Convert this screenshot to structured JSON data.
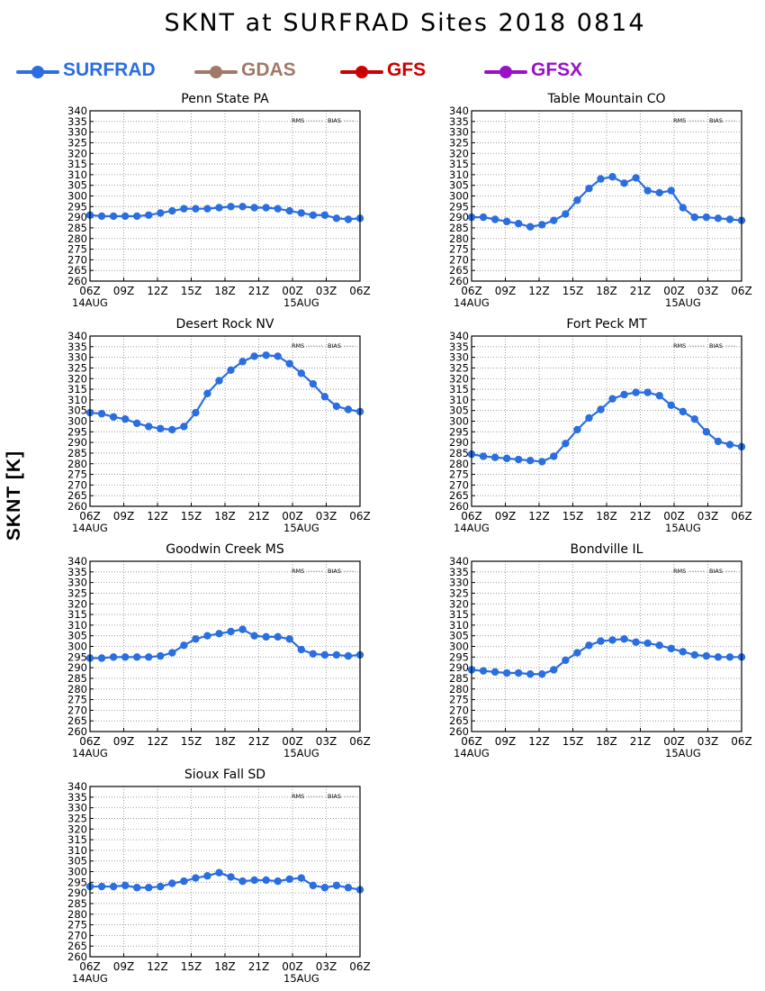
{
  "header": {
    "title": "SKNT at SURFRAD Sites    2018 0814"
  },
  "legend": [
    {
      "label": "SURFRAD",
      "color": "#2a6ee0"
    },
    {
      "label": "GDAS",
      "color": "#a0796a"
    },
    {
      "label": "GFS",
      "color": "#cc0000"
    },
    {
      "label": "GFSX",
      "color": "#9a10c8"
    }
  ],
  "ylabel": "SKNT [K]",
  "panel_legend": {
    "rms": "RMS",
    "bias": "BIAS"
  },
  "chart_data": [
    {
      "type": "line",
      "title": "Penn State PA",
      "x_ticks": [
        "06Z",
        "09Z",
        "12Z",
        "15Z",
        "18Z",
        "21Z",
        "00Z",
        "03Z",
        "06Z"
      ],
      "date_labels": [
        "14AUG",
        "15AUG"
      ],
      "ylim": [
        260,
        340
      ],
      "y_ticks": [
        260,
        265,
        270,
        275,
        280,
        285,
        290,
        295,
        300,
        305,
        310,
        315,
        320,
        325,
        330,
        335,
        340
      ],
      "grid": true,
      "series": [
        {
          "name": "SURFRAD",
          "values": [
            291,
            290.5,
            290.5,
            290.5,
            290.5,
            291,
            292,
            293,
            294,
            294,
            294,
            294.5,
            295,
            295,
            294.5,
            294.5,
            294,
            293,
            292,
            291,
            291,
            289.5,
            289,
            289.5
          ]
        }
      ]
    },
    {
      "type": "line",
      "title": "Table Mountain CO",
      "x_ticks": [
        "06Z",
        "09Z",
        "12Z",
        "15Z",
        "18Z",
        "21Z",
        "00Z",
        "03Z",
        "06Z"
      ],
      "date_labels": [
        "14AUG",
        "15AUG"
      ],
      "ylim": [
        260,
        340
      ],
      "y_ticks": [
        260,
        265,
        270,
        275,
        280,
        285,
        290,
        295,
        300,
        305,
        310,
        315,
        320,
        325,
        330,
        335,
        340
      ],
      "grid": true,
      "series": [
        {
          "name": "SURFRAD",
          "values": [
            290,
            290,
            289,
            288,
            287,
            285.5,
            286.5,
            288.5,
            291.5,
            298,
            303.5,
            308,
            309,
            306,
            308.5,
            302.5,
            301.5,
            302.5,
            294.5,
            290,
            290,
            289.5,
            289,
            288.5
          ]
        }
      ]
    },
    {
      "type": "line",
      "title": "Desert Rock NV",
      "x_ticks": [
        "06Z",
        "09Z",
        "12Z",
        "15Z",
        "18Z",
        "21Z",
        "00Z",
        "03Z",
        "06Z"
      ],
      "date_labels": [
        "14AUG",
        "15AUG"
      ],
      "ylim": [
        260,
        340
      ],
      "y_ticks": [
        260,
        265,
        270,
        275,
        280,
        285,
        290,
        295,
        300,
        305,
        310,
        315,
        320,
        325,
        330,
        335,
        340
      ],
      "grid": true,
      "series": [
        {
          "name": "SURFRAD",
          "values": [
            304,
            303.5,
            302,
            301,
            299,
            297.5,
            296.5,
            296,
            297.5,
            304,
            313,
            319,
            324,
            328,
            330.5,
            331,
            330.5,
            327,
            322.5,
            317.5,
            311.5,
            307,
            305.5,
            304.5
          ]
        }
      ]
    },
    {
      "type": "line",
      "title": "Fort Peck MT",
      "x_ticks": [
        "06Z",
        "09Z",
        "12Z",
        "15Z",
        "18Z",
        "21Z",
        "00Z",
        "03Z",
        "06Z"
      ],
      "date_labels": [
        "14AUG",
        "15AUG"
      ],
      "ylim": [
        260,
        340
      ],
      "y_ticks": [
        260,
        265,
        270,
        275,
        280,
        285,
        290,
        295,
        300,
        305,
        310,
        315,
        320,
        325,
        330,
        335,
        340
      ],
      "grid": true,
      "series": [
        {
          "name": "SURFRAD",
          "values": [
            284.5,
            283.5,
            283,
            282.5,
            282,
            281.5,
            281,
            283.5,
            289.5,
            296,
            301.5,
            305.5,
            310.5,
            312.5,
            313.5,
            313.5,
            312,
            307.5,
            304.5,
            301,
            295,
            290.5,
            289,
            288
          ]
        }
      ]
    },
    {
      "type": "line",
      "title": "Goodwin Creek MS",
      "x_ticks": [
        "06Z",
        "09Z",
        "12Z",
        "15Z",
        "18Z",
        "21Z",
        "00Z",
        "03Z",
        "06Z"
      ],
      "date_labels": [
        "14AUG",
        "15AUG"
      ],
      "ylim": [
        260,
        340
      ],
      "y_ticks": [
        260,
        265,
        270,
        275,
        280,
        285,
        290,
        295,
        300,
        305,
        310,
        315,
        320,
        325,
        330,
        335,
        340
      ],
      "grid": true,
      "series": [
        {
          "name": "SURFRAD",
          "values": [
            294.5,
            294.5,
            295,
            295,
            295,
            295,
            295.5,
            297,
            300.5,
            303.5,
            305,
            306,
            307,
            308,
            305,
            304.5,
            304.5,
            303.5,
            298.5,
            296.5,
            296,
            296,
            295.5,
            296
          ]
        }
      ]
    },
    {
      "type": "line",
      "title": "Bondville IL",
      "x_ticks": [
        "06Z",
        "09Z",
        "12Z",
        "15Z",
        "18Z",
        "21Z",
        "00Z",
        "03Z",
        "06Z"
      ],
      "date_labels": [
        "14AUG",
        "15AUG"
      ],
      "ylim": [
        260,
        340
      ],
      "y_ticks": [
        260,
        265,
        270,
        275,
        280,
        285,
        290,
        295,
        300,
        305,
        310,
        315,
        320,
        325,
        330,
        335,
        340
      ],
      "grid": true,
      "series": [
        {
          "name": "SURFRAD",
          "values": [
            289,
            288.5,
            288,
            287.5,
            287.5,
            287,
            287,
            289,
            293.5,
            297,
            300.5,
            302.5,
            303,
            303.5,
            302,
            301.5,
            300.5,
            299,
            297.5,
            296,
            295.5,
            295,
            295,
            295
          ]
        }
      ]
    },
    {
      "type": "line",
      "title": "Sioux Fall SD",
      "x_ticks": [
        "06Z",
        "09Z",
        "12Z",
        "15Z",
        "18Z",
        "21Z",
        "00Z",
        "03Z",
        "06Z"
      ],
      "date_labels": [
        "14AUG",
        "15AUG"
      ],
      "ylim": [
        260,
        340
      ],
      "y_ticks": [
        260,
        265,
        270,
        275,
        280,
        285,
        290,
        295,
        300,
        305,
        310,
        315,
        320,
        325,
        330,
        335,
        340
      ],
      "grid": true,
      "series": [
        {
          "name": "SURFRAD",
          "values": [
            293,
            293,
            293,
            293.5,
            292.5,
            292.5,
            293,
            294.5,
            295.5,
            297,
            298,
            299.5,
            297.5,
            295.5,
            296,
            296,
            295.5,
            296.5,
            297,
            293.5,
            292.5,
            293.5,
            292.5,
            291.5
          ]
        }
      ]
    }
  ]
}
